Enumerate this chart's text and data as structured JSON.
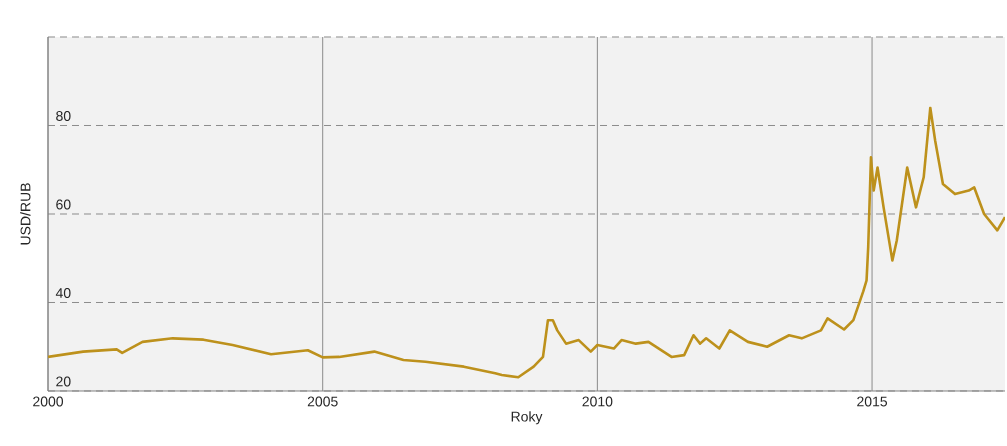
{
  "chart_data": {
    "type": "line",
    "xlabel": "Roky",
    "ylabel": "USD/RUB",
    "x": [
      2000.0,
      2000.64,
      2001.25,
      2001.35,
      2001.72,
      2002.27,
      2002.83,
      2003.36,
      2004.06,
      2004.73,
      2005.0,
      2005.3,
      2005.94,
      2006.47,
      2006.87,
      2007.57,
      2008.14,
      2008.26,
      2008.56,
      2008.84,
      2009.01,
      2009.1,
      2009.19,
      2009.27,
      2009.43,
      2009.66,
      2009.88,
      2010.0,
      2010.3,
      2010.44,
      2010.7,
      2010.93,
      2011.35,
      2011.58,
      2011.75,
      2011.87,
      2011.98,
      2012.22,
      2012.41,
      2012.74,
      2013.09,
      2013.49,
      2013.72,
      2014.07,
      2014.19,
      2014.49,
      2014.66,
      2014.84,
      2014.9,
      2014.93,
      2014.98,
      2015.03,
      2015.1,
      2015.21,
      2015.37,
      2015.45,
      2015.64,
      2015.8,
      2015.94,
      2016.06,
      2016.15,
      2016.29,
      2016.51,
      2016.76,
      2016.86,
      2017.04,
      2017.28,
      2017.42
    ],
    "series": [
      {
        "color": "#bd911c",
        "values": [
          27.7,
          28.9,
          29.4,
          28.6,
          31.1,
          31.9,
          31.6,
          30.4,
          28.3,
          29.2,
          27.6,
          27.7,
          28.9,
          27.0,
          26.6,
          25.5,
          24.0,
          23.6,
          23.1,
          25.5,
          27.7,
          36.0,
          36.0,
          33.7,
          30.7,
          31.5,
          28.9,
          30.4,
          29.6,
          31.5,
          30.7,
          31.1,
          27.7,
          28.1,
          32.6,
          30.7,
          31.9,
          29.6,
          33.7,
          31.1,
          30.0,
          32.6,
          31.9,
          33.7,
          36.4,
          33.9,
          36.0,
          42.5,
          45.0,
          52.5,
          72.8,
          65.3,
          70.5,
          61.5,
          49.5,
          54.0,
          70.5,
          61.5,
          68.3,
          84.0,
          76.5,
          66.8,
          64.5,
          65.3,
          66.0,
          60.0,
          56.3,
          59.3
        ]
      }
    ],
    "xlim": [
      2000,
      2017.42
    ],
    "xticks": [
      2000,
      2005,
      2010,
      2015
    ],
    "ylim": [
      20,
      100
    ],
    "yticks": [
      20,
      40,
      60,
      80,
      {
        "value": 100,
        "label": null
      }
    ],
    "grid": true,
    "line_style": "solid",
    "marker": "none"
  }
}
